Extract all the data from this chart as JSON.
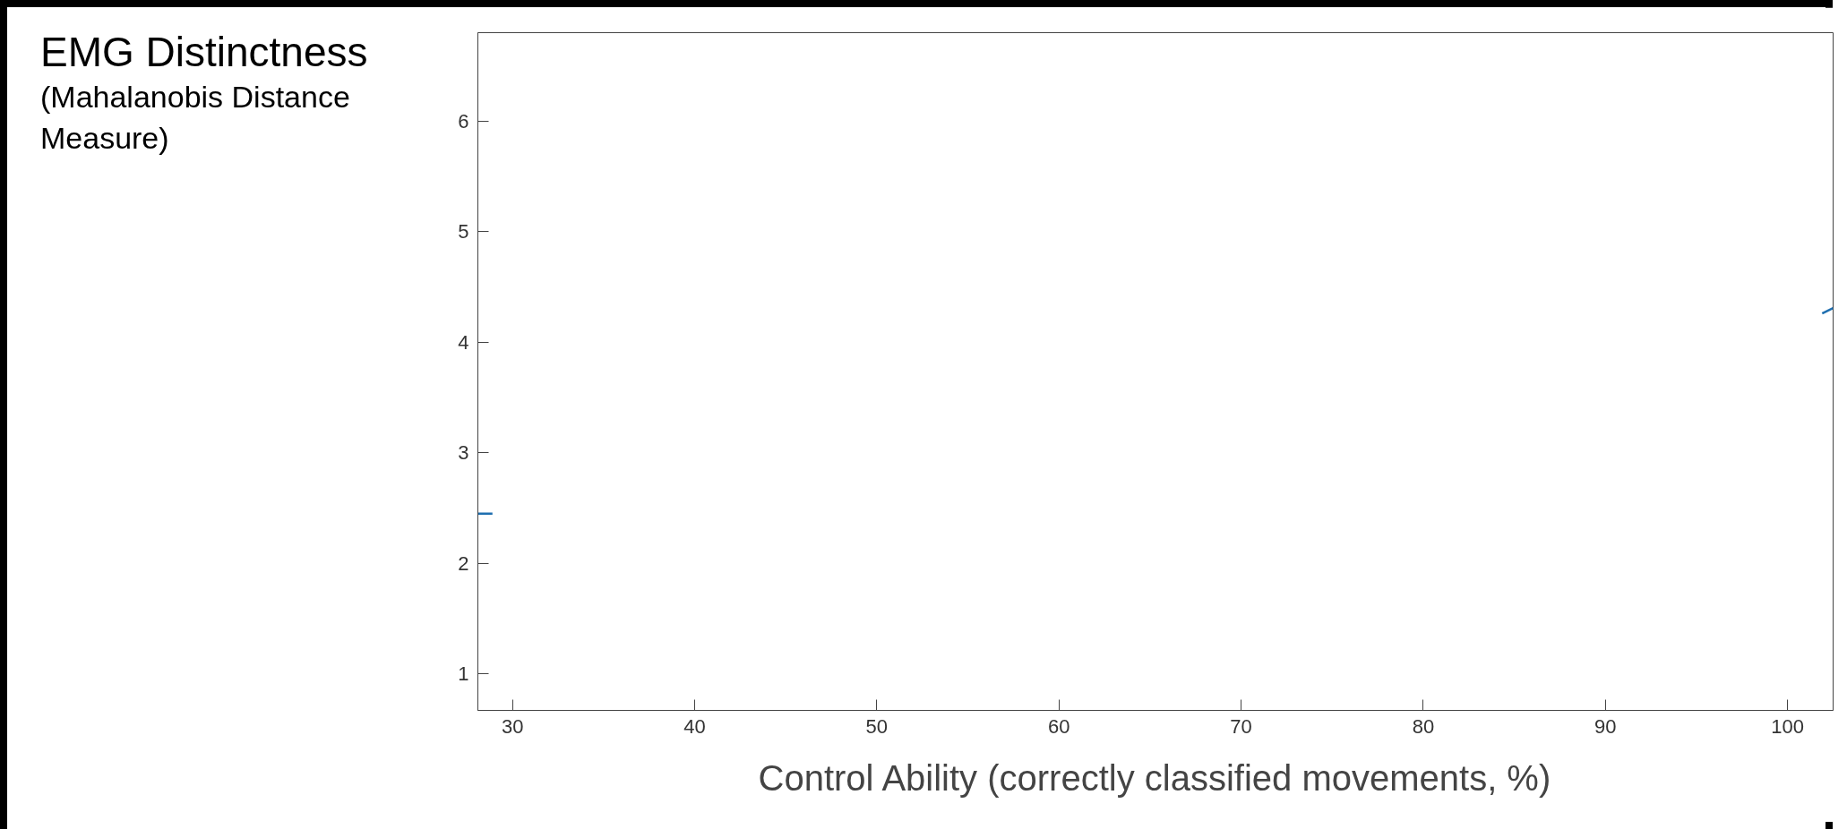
{
  "chart_data": {
    "type": "line",
    "xlabel": "Control Ability (correctly classified movements, %)",
    "ylabel": "EMG Distinctness (Mahalanobis Distance Measure)",
    "x": [
      28.1,
      28.9,
      65,
      101.9,
      102.5
    ],
    "series": [
      {
        "color": "#1f6fb0",
        "values": [
          2.45,
          2.45,
          null,
          4.26,
          4.31
        ]
      }
    ],
    "xlim": [
      28.1,
      102.5
    ],
    "ylim": [
      0.67,
      6.8
    ],
    "xticks": [
      30,
      40,
      50,
      60,
      70,
      80,
      90,
      100
    ],
    "yticks": [
      1,
      2,
      3,
      4,
      5,
      6
    ],
    "grid": false,
    "marker": "none",
    "line_style": "solid"
  }
}
